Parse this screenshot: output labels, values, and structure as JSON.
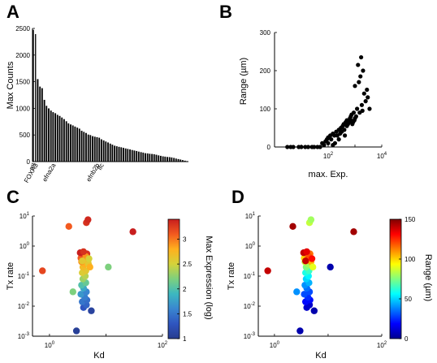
{
  "colors": {
    "bar": "#000000",
    "dot": "#000000",
    "colormap_jet": [
      "#00008f",
      "#0000ff",
      "#0080ff",
      "#00ffff",
      "#80ff80",
      "#ffff00",
      "#ff8000",
      "#ff0000",
      "#800000"
    ],
    "colormap_parula_like": [
      "#273c8f",
      "#2f55c0",
      "#3a86d0",
      "#3cb8c0",
      "#7dd07e",
      "#d4d23a",
      "#ffb01e",
      "#f35a1f",
      "#c81e1e"
    ]
  },
  "chart_data": [
    {
      "panel": "A",
      "type": "bar",
      "title": "",
      "xlabel": "",
      "ylabel": "Max Counts",
      "ylim": [
        0,
        2500
      ],
      "yticks": [
        "0",
        "500",
        "1000",
        "1500",
        "2000",
        "2500"
      ],
      "category_labels": [
        "ntl",
        "FOXA3",
        "efna2a",
        "efnb2b",
        "lfc"
      ],
      "category_label_positions": [
        0,
        1,
        9,
        29,
        31
      ],
      "values": [
        2480,
        2400,
        1550,
        1410,
        1380,
        1160,
        1050,
        1000,
        960,
        930,
        910,
        880,
        860,
        830,
        800,
        760,
        720,
        700,
        680,
        660,
        640,
        620,
        580,
        560,
        540,
        510,
        500,
        480,
        470,
        460,
        450,
        420,
        400,
        380,
        360,
        340,
        320,
        300,
        290,
        280,
        270,
        260,
        250,
        240,
        230,
        220,
        210,
        200,
        190,
        180,
        170,
        160,
        155,
        150,
        145,
        140,
        130,
        120,
        110,
        100,
        95,
        90,
        85,
        80,
        70,
        60,
        50,
        40,
        30,
        20,
        10
      ],
      "grid": false
    },
    {
      "panel": "B",
      "type": "scatter",
      "title": "",
      "xlabel": "max. Exp.",
      "ylabel": "Range (µm)",
      "xscale": "log",
      "xlim": [
        1,
        10000
      ],
      "xticks": [
        "10^2",
        "10^4"
      ],
      "ylim": [
        0,
        300
      ],
      "yticks": [
        "0",
        "100",
        "200",
        "300"
      ],
      "points": [
        [
          3,
          0
        ],
        [
          4,
          0
        ],
        [
          5,
          0
        ],
        [
          8,
          0
        ],
        [
          10,
          0
        ],
        [
          14,
          0
        ],
        [
          18,
          0
        ],
        [
          25,
          0
        ],
        [
          30,
          0
        ],
        [
          40,
          0
        ],
        [
          50,
          0
        ],
        [
          60,
          10
        ],
        [
          70,
          5
        ],
        [
          80,
          15
        ],
        [
          90,
          20
        ],
        [
          100,
          25
        ],
        [
          100,
          10
        ],
        [
          120,
          30
        ],
        [
          130,
          20
        ],
        [
          150,
          35
        ],
        [
          150,
          5
        ],
        [
          170,
          30
        ],
        [
          180,
          10
        ],
        [
          200,
          40
        ],
        [
          220,
          30
        ],
        [
          250,
          45
        ],
        [
          250,
          20
        ],
        [
          280,
          35
        ],
        [
          300,
          50
        ],
        [
          320,
          40
        ],
        [
          350,
          55
        ],
        [
          380,
          60
        ],
        [
          400,
          45
        ],
        [
          420,
          30
        ],
        [
          450,
          65
        ],
        [
          500,
          55
        ],
        [
          500,
          70
        ],
        [
          550,
          60
        ],
        [
          600,
          65
        ],
        [
          650,
          75
        ],
        [
          700,
          70
        ],
        [
          700,
          80
        ],
        [
          750,
          85
        ],
        [
          800,
          60
        ],
        [
          850,
          65
        ],
        [
          900,
          90
        ],
        [
          950,
          70
        ],
        [
          1000,
          75
        ],
        [
          1000,
          160
        ],
        [
          1100,
          80
        ],
        [
          1200,
          100
        ],
        [
          1300,
          215
        ],
        [
          1400,
          170
        ],
        [
          1500,
          90
        ],
        [
          1600,
          185
        ],
        [
          1700,
          235
        ],
        [
          1800,
          110
        ],
        [
          1900,
          95
        ],
        [
          2000,
          200
        ],
        [
          2200,
          140
        ],
        [
          2500,
          120
        ],
        [
          2800,
          150
        ],
        [
          3000,
          130
        ],
        [
          3500,
          100
        ]
      ],
      "grid": false
    },
    {
      "panel": "C",
      "type": "scatter",
      "title": "",
      "xlabel": "Kd",
      "ylabel": "Tx rate",
      "xscale": "log",
      "yscale": "log",
      "xlim": [
        0.5,
        100
      ],
      "ylim": [
        0.001,
        10
      ],
      "xticks": [
        "10^0",
        "10^2"
      ],
      "yticks": [
        "10^-3",
        "10^-2",
        "10^-1",
        "10^0",
        "10^1"
      ],
      "colorbar": {
        "label": "Max Expression (log)",
        "range": [
          1,
          3.4
        ],
        "ticks": [
          "1",
          "1.5",
          "2",
          "2.5",
          "3"
        ]
      },
      "points": [
        [
          0.75,
          0.15,
          3.2
        ],
        [
          3.0,
          0.0015,
          1.05
        ],
        [
          2.6,
          0.03,
          2.2
        ],
        [
          5.5,
          0.007,
          1.1
        ],
        [
          4.0,
          0.009,
          1.3
        ],
        [
          4.5,
          0.011,
          1.4
        ],
        [
          3.8,
          0.014,
          1.5
        ],
        [
          4.6,
          0.016,
          1.45
        ],
        [
          4.2,
          0.02,
          1.55
        ],
        [
          3.6,
          0.025,
          1.7
        ],
        [
          4.5,
          0.03,
          1.6
        ],
        [
          4.0,
          0.04,
          1.8
        ],
        [
          3.7,
          0.05,
          2.0
        ],
        [
          4.4,
          0.06,
          2.1
        ],
        [
          3.9,
          0.08,
          2.3
        ],
        [
          4.3,
          0.1,
          2.4
        ],
        [
          3.8,
          0.13,
          2.55
        ],
        [
          4.4,
          0.15,
          2.6
        ],
        [
          3.9,
          0.2,
          2.7
        ],
        [
          4.2,
          0.25,
          2.8
        ],
        [
          3.7,
          0.3,
          2.9
        ],
        [
          4.5,
          0.35,
          3.0
        ],
        [
          3.6,
          0.4,
          3.1
        ],
        [
          4.1,
          0.5,
          3.2
        ],
        [
          4.6,
          0.55,
          3.3
        ],
        [
          3.5,
          0.6,
          3.4
        ],
        [
          4.8,
          0.3,
          2.7
        ],
        [
          4.9,
          0.25,
          2.6
        ],
        [
          5.2,
          0.2,
          2.8
        ],
        [
          11.0,
          0.2,
          2.2
        ],
        [
          4.5,
          6.0,
          3.3
        ],
        [
          4.8,
          7.5,
          3.35
        ],
        [
          2.2,
          4.5,
          3.1
        ],
        [
          4.4,
          0.45,
          2.9
        ],
        [
          5.0,
          0.38,
          2.5
        ],
        [
          30.0,
          3.0,
          3.4
        ],
        [
          4.0,
          0.65,
          3.3
        ],
        [
          3.8,
          0.32,
          2.6
        ]
      ]
    },
    {
      "panel": "D",
      "type": "scatter",
      "title": "",
      "xlabel": "Kd",
      "ylabel": "Tx rate",
      "xscale": "log",
      "yscale": "log",
      "xlim": [
        0.5,
        100
      ],
      "ylim": [
        0.001,
        10
      ],
      "xticks": [
        "10^0",
        "10^2"
      ],
      "yticks": [
        "10^-3",
        "10^-2",
        "10^-1",
        "10^0",
        "10^1"
      ],
      "colorbar": {
        "label": "Range (µm)",
        "range": [
          0,
          150
        ],
        "ticks": [
          "0",
          "50",
          "100",
          "150"
        ]
      },
      "points": [
        [
          0.75,
          0.15,
          140
        ],
        [
          3.0,
          0.0015,
          5
        ],
        [
          5.5,
          0.007,
          5
        ],
        [
          4.0,
          0.009,
          10
        ],
        [
          4.5,
          0.011,
          10
        ],
        [
          3.8,
          0.014,
          20
        ],
        [
          4.6,
          0.016,
          20
        ],
        [
          4.2,
          0.02,
          25
        ],
        [
          3.6,
          0.025,
          30
        ],
        [
          2.6,
          0.03,
          40
        ],
        [
          4.5,
          0.03,
          30
        ],
        [
          4.0,
          0.04,
          35
        ],
        [
          3.7,
          0.05,
          40
        ],
        [
          4.4,
          0.06,
          45
        ],
        [
          3.9,
          0.08,
          50
        ],
        [
          4.3,
          0.1,
          55
        ],
        [
          3.8,
          0.13,
          60
        ],
        [
          4.4,
          0.15,
          65
        ],
        [
          3.9,
          0.2,
          75
        ],
        [
          4.2,
          0.25,
          80
        ],
        [
          3.7,
          0.3,
          85
        ],
        [
          4.5,
          0.35,
          95
        ],
        [
          3.6,
          0.4,
          100
        ],
        [
          4.1,
          0.5,
          110
        ],
        [
          4.6,
          0.55,
          115
        ],
        [
          3.5,
          0.6,
          140
        ],
        [
          4.8,
          0.3,
          105
        ],
        [
          5.2,
          0.2,
          90
        ],
        [
          11.0,
          0.2,
          5
        ],
        [
          4.5,
          6.0,
          85
        ],
        [
          4.8,
          7.5,
          80
        ],
        [
          2.2,
          4.5,
          145
        ],
        [
          4.4,
          0.45,
          120
        ],
        [
          5.0,
          0.38,
          130
        ],
        [
          30.0,
          3.0,
          145
        ],
        [
          4.0,
          0.65,
          135
        ],
        [
          3.8,
          0.32,
          140
        ]
      ]
    }
  ]
}
